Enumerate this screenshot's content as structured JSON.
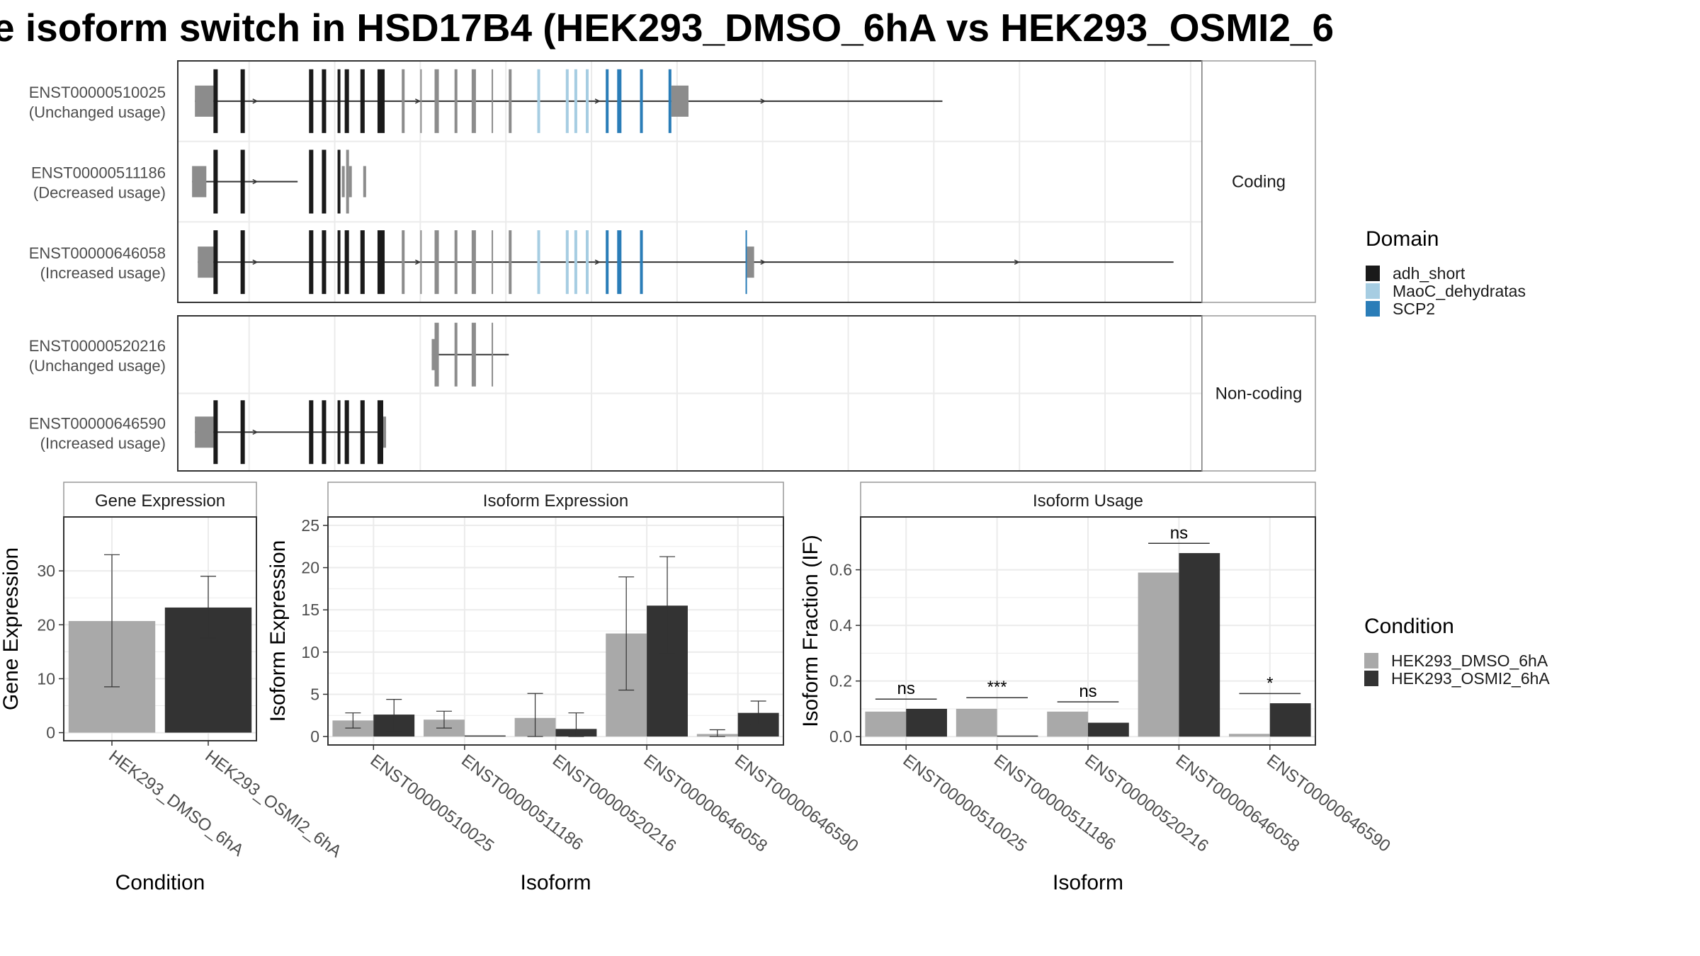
{
  "title": "e isoform switch in HSD17B4 (HEK293_DMSO_6hA vs HEK293_OSMI2_6",
  "colors": {
    "dmso": "#a9a9a9",
    "osmi": "#333333",
    "utr_exon": "#8c8c8c",
    "domain_adh_short": "#1a1a1a",
    "domain_maoc": "#a6cde2",
    "domain_scp2": "#2a7db8",
    "panel_border": "#333333",
    "grid": "#ebebeb",
    "strip_border": "#999999"
  },
  "structure": {
    "groups": [
      {
        "label": "Coding",
        "transcripts": [
          {
            "id": "ENST00000510025",
            "usage": "(Unchanged usage)",
            "start": 4.2,
            "end": 30.4,
            "arrows": [
              6.3,
              12.0,
              18.3,
              24.1
            ],
            "exons": [
              {
                "s": 4.2,
                "e": 4.85,
                "t": "utr"
              },
              {
                "s": 4.85,
                "e": 5.0,
                "t": "adh_short"
              },
              {
                "s": 5.8,
                "e": 5.95,
                "t": "adh_short"
              },
              {
                "s": 8.2,
                "e": 8.35,
                "t": "adh_short"
              },
              {
                "s": 8.65,
                "e": 8.8,
                "t": "adh_short"
              },
              {
                "s": 9.2,
                "e": 9.3,
                "t": "adh_short"
              },
              {
                "s": 9.45,
                "e": 9.6,
                "t": "adh_short"
              },
              {
                "s": 10.0,
                "e": 10.15,
                "t": "adh_short"
              },
              {
                "s": 10.6,
                "e": 10.85,
                "t": "adh_short"
              },
              {
                "s": 11.45,
                "e": 11.55,
                "t": "coding"
              },
              {
                "s": 12.1,
                "e": 12.15,
                "t": "coding"
              },
              {
                "s": 12.6,
                "e": 12.75,
                "t": "coding"
              },
              {
                "s": 13.3,
                "e": 13.4,
                "t": "coding"
              },
              {
                "s": 13.9,
                "e": 14.05,
                "t": "coding"
              },
              {
                "s": 14.6,
                "e": 14.65,
                "t": "coding"
              },
              {
                "s": 15.2,
                "e": 15.3,
                "t": "coding"
              },
              {
                "s": 16.2,
                "e": 16.3,
                "t": "maoc"
              },
              {
                "s": 17.2,
                "e": 17.3,
                "t": "maoc"
              },
              {
                "s": 17.5,
                "e": 17.6,
                "t": "maoc"
              },
              {
                "s": 17.9,
                "e": 18.0,
                "t": "maoc"
              },
              {
                "s": 18.6,
                "e": 18.7,
                "t": "scp2"
              },
              {
                "s": 19.0,
                "e": 19.15,
                "t": "scp2"
              },
              {
                "s": 19.8,
                "e": 19.9,
                "t": "scp2"
              },
              {
                "s": 20.8,
                "e": 20.9,
                "t": "scp2"
              },
              {
                "s": 20.9,
                "e": 21.5,
                "t": "utr"
              }
            ]
          },
          {
            "id": "ENST00000511186",
            "usage": "(Decreased usage)",
            "start": 4.1,
            "end": 7.8,
            "arrows": [
              6.3
            ],
            "exons": [
              {
                "s": 4.1,
                "e": 4.6,
                "t": "utr"
              },
              {
                "s": 4.85,
                "e": 5.0,
                "t": "adh_short"
              },
              {
                "s": 5.8,
                "e": 5.95,
                "t": "adh_short"
              },
              {
                "s": 8.2,
                "e": 8.35,
                "t": "adh_short"
              },
              {
                "s": 8.65,
                "e": 8.8,
                "t": "adh_short"
              },
              {
                "s": 9.2,
                "e": 9.3,
                "t": "adh_short"
              },
              {
                "s": 9.35,
                "e": 9.45,
                "t": "utr"
              },
              {
                "s": 9.5,
                "e": 9.6,
                "t": "coding"
              },
              {
                "s": 9.6,
                "e": 9.7,
                "t": "utr"
              },
              {
                "s": 10.1,
                "e": 10.2,
                "t": "utr"
              }
            ]
          },
          {
            "id": "ENST00000646058",
            "usage": "(Increased usage)",
            "start": 4.3,
            "end": 38.5,
            "arrows": [
              6.3,
              12.0,
              18.3,
              24.1,
              33.0
            ],
            "exons": [
              {
                "s": 4.3,
                "e": 4.85,
                "t": "utr"
              },
              {
                "s": 4.85,
                "e": 5.0,
                "t": "adh_short"
              },
              {
                "s": 5.8,
                "e": 5.95,
                "t": "adh_short"
              },
              {
                "s": 8.2,
                "e": 8.35,
                "t": "adh_short"
              },
              {
                "s": 8.65,
                "e": 8.8,
                "t": "adh_short"
              },
              {
                "s": 9.2,
                "e": 9.3,
                "t": "adh_short"
              },
              {
                "s": 9.45,
                "e": 9.6,
                "t": "adh_short"
              },
              {
                "s": 10.0,
                "e": 10.15,
                "t": "adh_short"
              },
              {
                "s": 10.6,
                "e": 10.85,
                "t": "adh_short"
              },
              {
                "s": 11.45,
                "e": 11.55,
                "t": "coding"
              },
              {
                "s": 12.1,
                "e": 12.15,
                "t": "coding"
              },
              {
                "s": 12.6,
                "e": 12.75,
                "t": "coding"
              },
              {
                "s": 13.3,
                "e": 13.4,
                "t": "coding"
              },
              {
                "s": 13.9,
                "e": 14.05,
                "t": "coding"
              },
              {
                "s": 14.6,
                "e": 14.65,
                "t": "coding"
              },
              {
                "s": 15.2,
                "e": 15.3,
                "t": "coding"
              },
              {
                "s": 16.2,
                "e": 16.3,
                "t": "maoc"
              },
              {
                "s": 17.2,
                "e": 17.3,
                "t": "maoc"
              },
              {
                "s": 17.5,
                "e": 17.6,
                "t": "maoc"
              },
              {
                "s": 17.9,
                "e": 18.0,
                "t": "maoc"
              },
              {
                "s": 18.6,
                "e": 18.7,
                "t": "scp2"
              },
              {
                "s": 19.0,
                "e": 19.15,
                "t": "scp2"
              },
              {
                "s": 19.8,
                "e": 19.9,
                "t": "scp2"
              },
              {
                "s": 23.5,
                "e": 23.55,
                "t": "scp2"
              },
              {
                "s": 23.55,
                "e": 23.8,
                "t": "utr"
              }
            ]
          }
        ]
      },
      {
        "label": "Non-coding",
        "transcripts": [
          {
            "id": "ENST00000520216",
            "usage": "(Unchanged usage)",
            "start": 12.5,
            "end": 15.2,
            "arrows": [],
            "exons": [
              {
                "s": 12.5,
                "e": 12.6,
                "t": "utr"
              },
              {
                "s": 12.6,
                "e": 12.75,
                "t": "coding"
              },
              {
                "s": 13.3,
                "e": 13.4,
                "t": "coding"
              },
              {
                "s": 13.9,
                "e": 14.05,
                "t": "coding"
              },
              {
                "s": 14.6,
                "e": 14.65,
                "t": "coding"
              }
            ]
          },
          {
            "id": "ENST00000646590",
            "usage": "(Increased usage)",
            "start": 4.2,
            "end": 10.9,
            "arrows": [
              6.3
            ],
            "exons": [
              {
                "s": 4.2,
                "e": 4.85,
                "t": "utr"
              },
              {
                "s": 4.85,
                "e": 5.0,
                "t": "adh_short"
              },
              {
                "s": 5.8,
                "e": 5.95,
                "t": "adh_short"
              },
              {
                "s": 8.2,
                "e": 8.35,
                "t": "adh_short"
              },
              {
                "s": 8.65,
                "e": 8.8,
                "t": "adh_short"
              },
              {
                "s": 9.2,
                "e": 9.3,
                "t": "adh_short"
              },
              {
                "s": 9.45,
                "e": 9.6,
                "t": "adh_short"
              },
              {
                "s": 10.0,
                "e": 10.15,
                "t": "adh_short"
              },
              {
                "s": 10.6,
                "e": 10.8,
                "t": "adh_short"
              },
              {
                "s": 10.8,
                "e": 10.9,
                "t": "utr"
              }
            ]
          }
        ]
      }
    ]
  },
  "legends": {
    "domain": {
      "title": "Domain",
      "items": [
        {
          "label": "adh_short",
          "key": "domain_adh_short"
        },
        {
          "label": "MaoC_dehydratas",
          "key": "domain_maoc"
        },
        {
          "label": "SCP2",
          "key": "domain_scp2"
        }
      ]
    },
    "condition": {
      "title": "Condition",
      "items": [
        {
          "label": "HEK293_DMSO_6hA",
          "key": "dmso"
        },
        {
          "label": "HEK293_OSMI2_6hA",
          "key": "osmi"
        }
      ]
    }
  },
  "chart_data": [
    {
      "type": "bar",
      "panel": "Gene Expression",
      "xlabel": "Condition",
      "ylabel": "Gene Expression",
      "ylim": [
        -1.5,
        40
      ],
      "yticks": [
        0,
        10,
        20,
        30
      ],
      "categories": [
        "HEK293_DMSO_6hA",
        "HEK293_OSMI2_6hA"
      ],
      "values": [
        20.7,
        23.2
      ],
      "error": [
        [
          8.5,
          33.0
        ],
        [
          17.5,
          29.0
        ]
      ]
    },
    {
      "type": "bar",
      "panel": "Isoform Expression",
      "xlabel": "Isoform",
      "ylabel": "Isoform Expression",
      "ylim": [
        -1,
        26
      ],
      "yticks": [
        0,
        5,
        10,
        15,
        20,
        25
      ],
      "categories": [
        "ENST00000510025",
        "ENST00000511186",
        "ENST00000520216",
        "ENST00000646058",
        "ENST00000646590"
      ],
      "series": [
        {
          "name": "HEK293_DMSO_6hA",
          "values": [
            1.9,
            2.0,
            2.2,
            12.2,
            0.3
          ],
          "error": [
            [
              1.0,
              2.8
            ],
            [
              1.0,
              3.0
            ],
            [
              0.0,
              5.1
            ],
            [
              5.5,
              18.9
            ],
            [
              0.0,
              0.8
            ]
          ]
        },
        {
          "name": "HEK293_OSMI2_6hA",
          "values": [
            2.6,
            0.0,
            0.9,
            15.5,
            2.8
          ],
          "error": [
            [
              0.6,
              4.4
            ],
            [
              0.0,
              0.0
            ],
            [
              0.0,
              2.8
            ],
            [
              9.8,
              21.3
            ],
            [
              1.4,
              4.2
            ]
          ]
        }
      ]
    },
    {
      "type": "bar",
      "panel": "Isoform Usage",
      "xlabel": "Isoform",
      "ylabel": "Isoform Fraction (IF)",
      "ylim": [
        -0.03,
        0.79
      ],
      "yticks": [
        0.0,
        0.2,
        0.4,
        0.6
      ],
      "categories": [
        "ENST00000510025",
        "ENST00000511186",
        "ENST00000520216",
        "ENST00000646058",
        "ENST00000646590"
      ],
      "series": [
        {
          "name": "HEK293_DMSO_6hA",
          "values": [
            0.09,
            0.1,
            0.09,
            0.59,
            0.01
          ]
        },
        {
          "name": "HEK293_OSMI2_6hA",
          "values": [
            0.1,
            0.0,
            0.05,
            0.66,
            0.12
          ]
        }
      ],
      "significance": [
        {
          "label": "ns",
          "y": 0.135
        },
        {
          "label": "***",
          "y": 0.14
        },
        {
          "label": "ns",
          "y": 0.125
        },
        {
          "label": "ns",
          "y": 0.695
        },
        {
          "label": "*",
          "y": 0.155
        }
      ]
    }
  ]
}
